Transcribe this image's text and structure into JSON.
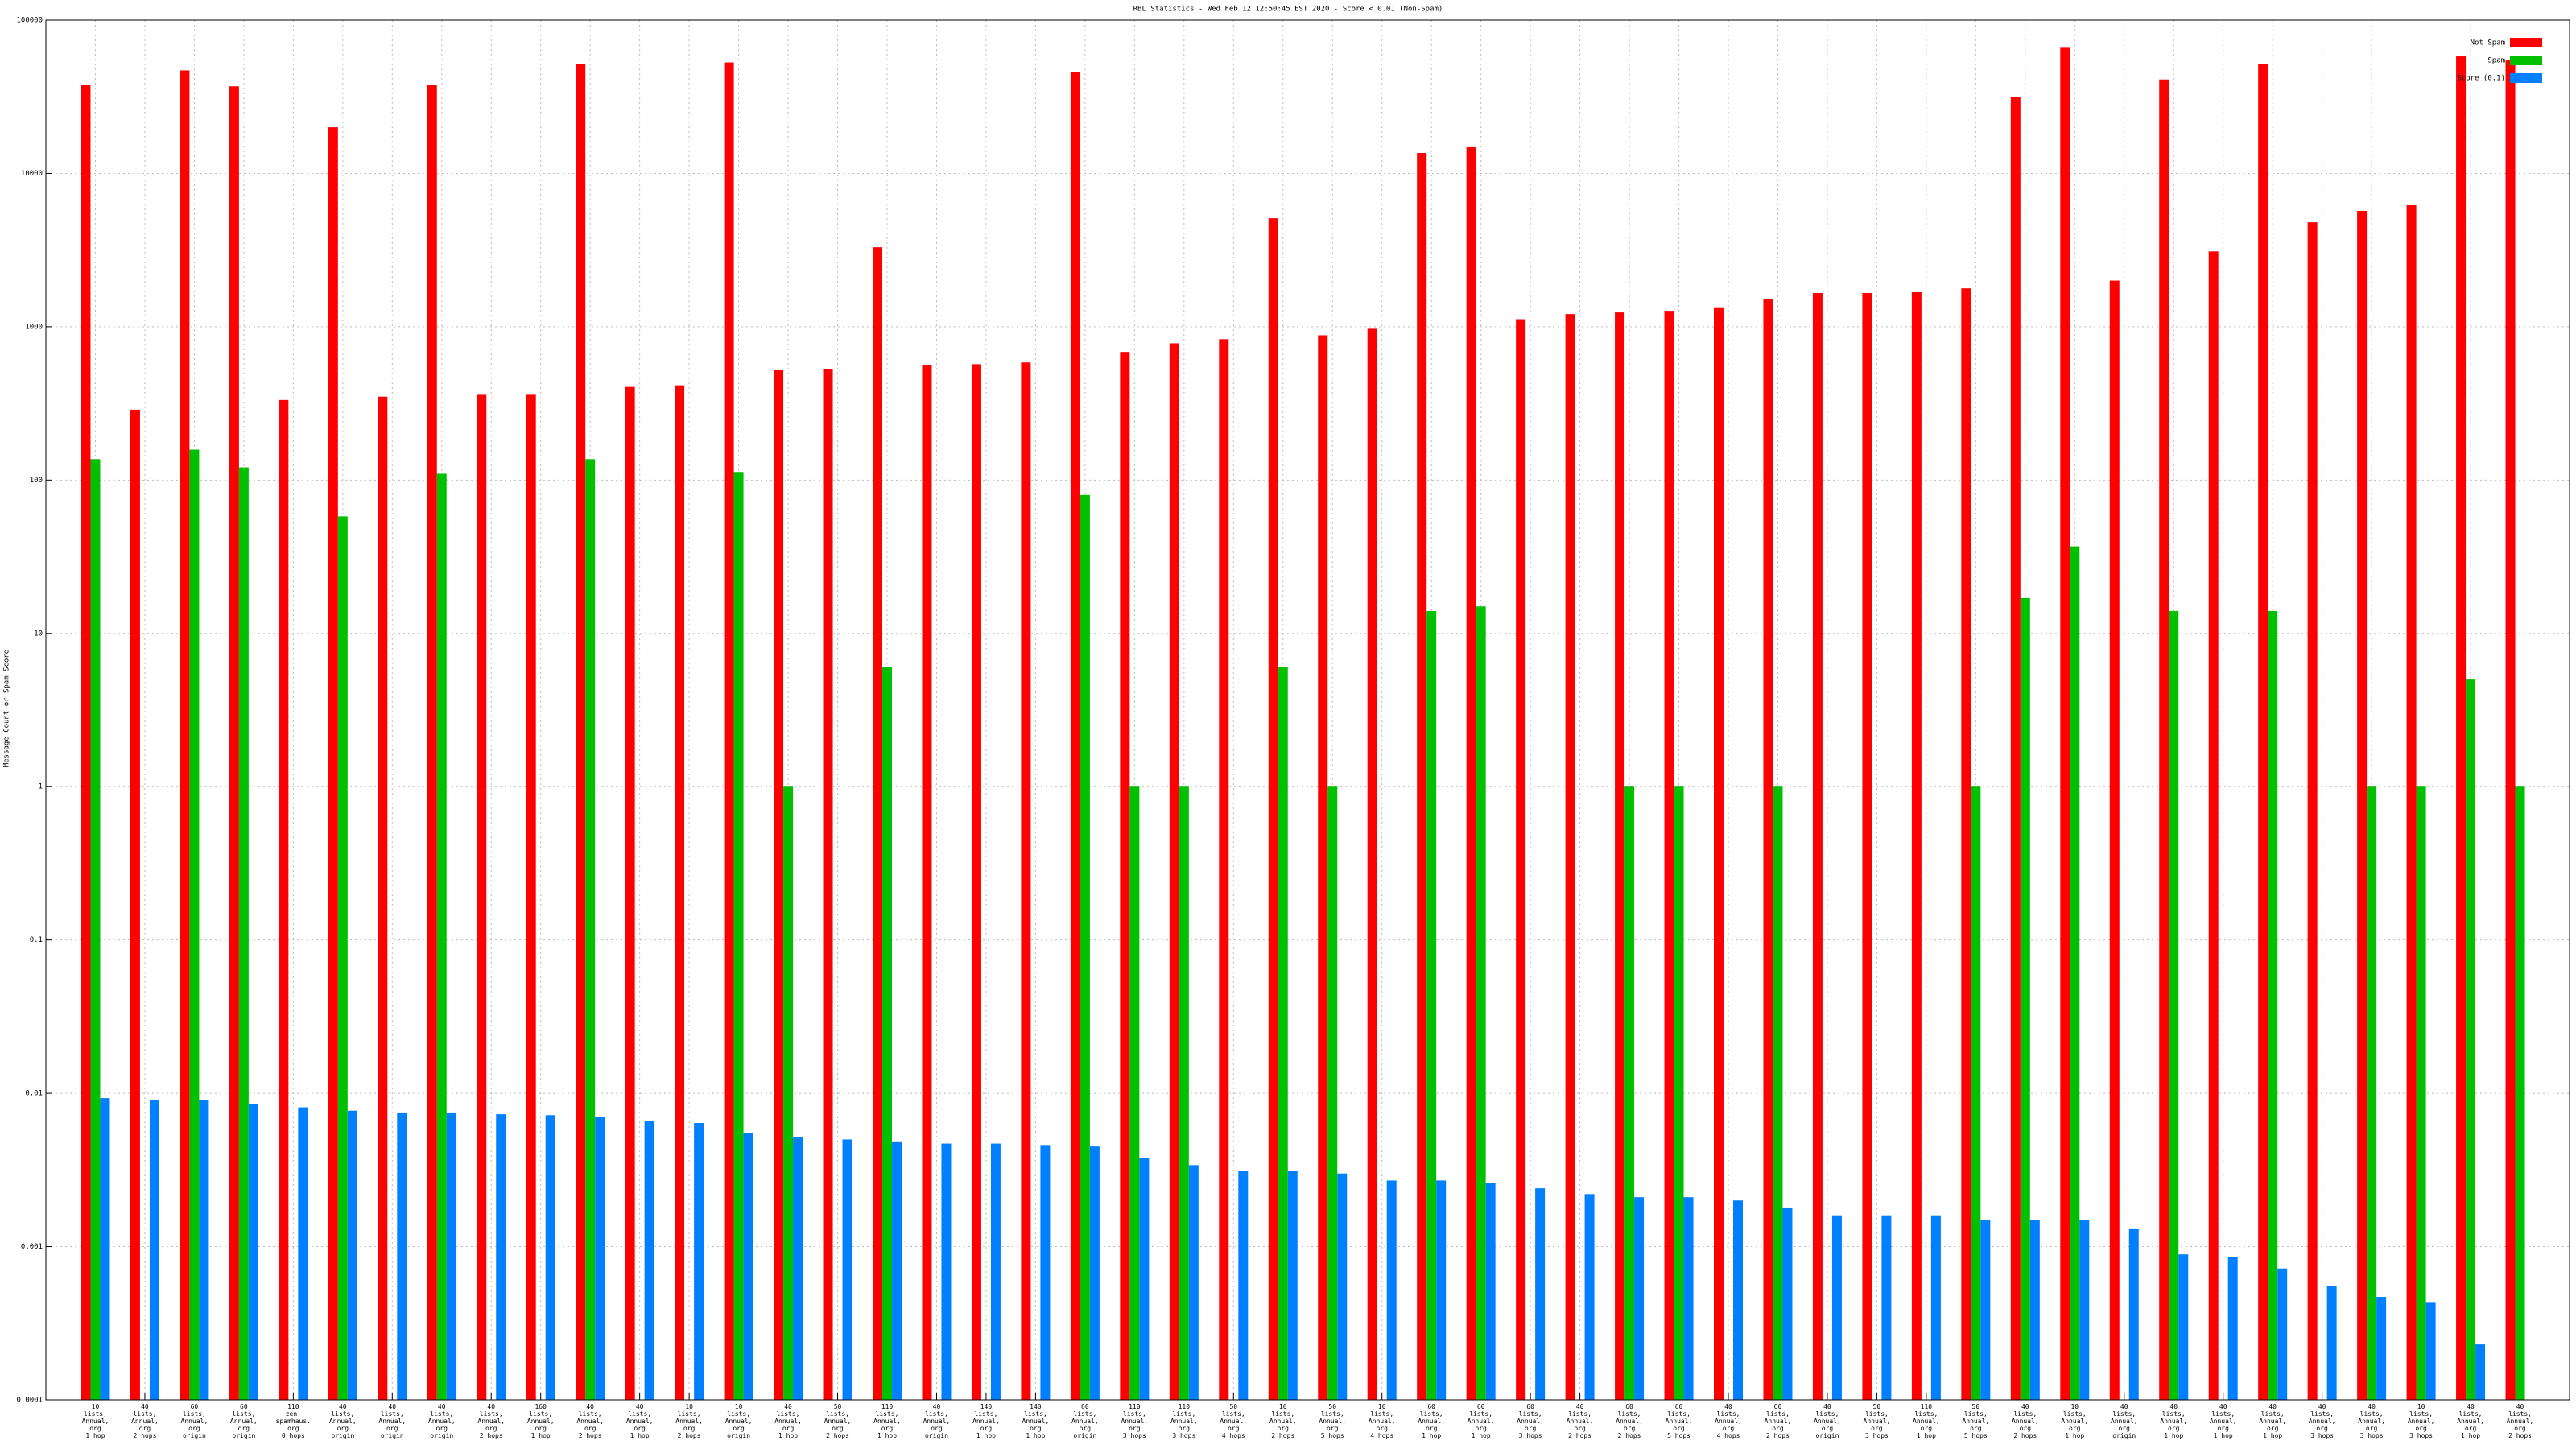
{
  "chart_data": {
    "type": "bar",
    "title": "RBL Statistics - Wed Feb 12 12:50:45 EST 2020 - Score < 0.01 (Non-Spam)",
    "y_label": "Message Count or Spam Score",
    "log_scale": true,
    "grid": true,
    "legend": "top-right",
    "ylim": [
      0.0001,
      100000
    ],
    "yticks": [
      0.0001,
      0.001,
      0.01,
      0.1,
      1,
      10,
      100,
      1000,
      10000,
      100000
    ],
    "categories": [
      "10\nlists,\nAnnual,\norg\n1 hop",
      "40\nlists,\nAnnual,\norg\n2 hops",
      "60\nlists,\nAnnual,\norg\norigin",
      "60\nlists,\nAnnual,\norg\norigin",
      "110\nzen.\nspamhaus.\norg\n0 hops",
      "40\nlists,\nAnnual,\norg\norigin",
      "40\nlists,\nAnnual,\norg\norigin",
      "40\nlists,\nAnnual,\norg\norigin",
      "40\nlists,\nAnnual,\norg\n2 hops",
      "160\nlists,\nAnnual,\norg\n1 hop",
      "40\nlists,\nAnnual,\norg\n2 hops",
      "40\nlists,\nAnnual,\norg\n1 hop",
      "10\nlists,\nAnnual,\norg\n2 hops",
      "10\nlists,\nAnnual,\norg\norigin",
      "40\nlists,\nAnnual,\norg\n1 hop",
      "50\nlists,\nAnnual,\norg\n2 hops",
      "110\nlists,\nAnnual,\norg\n1 hop",
      "40\nlists,\nAnnual,\norg\norigin",
      "140\nlists,\nAnnual,\norg\n1 hop",
      "140\nlists,\nAnnual,\norg\n1 hop",
      "60\nlists,\nAnnual,\norg\norigin",
      "110\nlists,\nAnnual,\norg\n3 hops",
      "110\nlists,\nAnnual,\norg\n3 hops",
      "50\nlists,\nAnnual,\norg\n4 hops",
      "10\nlists,\nAnnual,\norg\n2 hops",
      "50\nlists,\nAnnual,\norg\n5 hops",
      "10\nlists,\nAnnual,\norg\n4 hops",
      "60\nlists,\nAnnual,\norg\n1 hop",
      "60\nlists,\nAnnual,\norg\n1 hop",
      "60\nlists,\nAnnual,\norg\n3 hops",
      "40\nlists,\nAnnual,\norg\n2 hops",
      "60\nlists,\nAnnual,\norg\n2 hops",
      "60\nlists,\nAnnual,\norg\n5 hops",
      "40\nlists,\nAnnual,\norg\n4 hops",
      "60\nlists,\nAnnual,\norg\n2 hops",
      "40\nlists,\nAnnual,\norg\norigin",
      "50\nlists,\nAnnual,\norg\n3 hops",
      "110\nlists,\nAnnual,\norg\n1 hop",
      "50\nlists,\nAnnual,\norg\n5 hops",
      "40\nlists,\nAnnual,\norg\n2 hops",
      "10\nlists,\nAnnual,\norg\n1 hop",
      "40\nlists,\nAnnual,\norg\norigin",
      "40\nlists,\nAnnual,\norg\n1 hop",
      "40\nlists,\nAnnual,\norg\n1 hop",
      "40\nlists,\nAnnual,\norg\n1 hop",
      "40\nlists,\nAnnual,\norg\n3 hops",
      "40\nlists,\nAnnual,\norg\n3 hops",
      "10\nlists,\nAnnual,\norg\n3 hops",
      "40\nlists,\nAnnual,\norg\n1 hop",
      "40\nlists,\nAnnual,\norg\n2 hops"
    ],
    "series": [
      {
        "name": "Not Spam",
        "color": "#ff0000",
        "values": [
          38000,
          288,
          47000,
          37000,
          333,
          20000,
          350,
          38000,
          360,
          360,
          52000,
          405,
          415,
          53000,
          520,
          530,
          3300,
          560,
          570,
          585,
          46000,
          685,
          780,
          830,
          5100,
          880,
          970,
          13600,
          15000,
          1120,
          1210,
          1240,
          1270,
          1340,
          1510,
          1660,
          1660,
          1680,
          1780,
          31600,
          66000,
          2000,
          41000,
          3100,
          52000,
          4800,
          5700,
          6200,
          58000,
          55000
        ]
      },
      {
        "name": "Spam",
        "color": "#00c000",
        "values": [
          137,
          null,
          158,
          121,
          null,
          58,
          null,
          110,
          null,
          null,
          137,
          null,
          null,
          113,
          1,
          null,
          6,
          null,
          null,
          null,
          80,
          1,
          1,
          null,
          6,
          1,
          null,
          14,
          15,
          null,
          null,
          1,
          1,
          null,
          1,
          null,
          null,
          null,
          1,
          17,
          37,
          null,
          14,
          null,
          14,
          null,
          1,
          1,
          5,
          1
        ]
      },
      {
        "name": "Score (0.1)",
        "color": "#0080ff",
        "values": [
          0.0093,
          0.0091,
          0.009,
          0.0085,
          0.0081,
          0.0077,
          0.0075,
          0.0075,
          0.0073,
          0.0072,
          0.007,
          0.0066,
          0.0064,
          0.0055,
          0.0052,
          0.005,
          0.0048,
          0.0047,
          0.0047,
          0.0046,
          0.0045,
          0.0038,
          0.0034,
          0.0031,
          0.0031,
          0.003,
          0.0027,
          0.0027,
          0.0026,
          0.0024,
          0.0022,
          0.0021,
          0.0021,
          0.002,
          0.0018,
          0.0016,
          0.0016,
          0.0016,
          0.0015,
          0.0015,
          0.0015,
          0.0013,
          0.00089,
          0.00085,
          0.00072,
          0.00055,
          0.00047,
          0.00043,
          0.00023,
          null
        ]
      }
    ]
  }
}
